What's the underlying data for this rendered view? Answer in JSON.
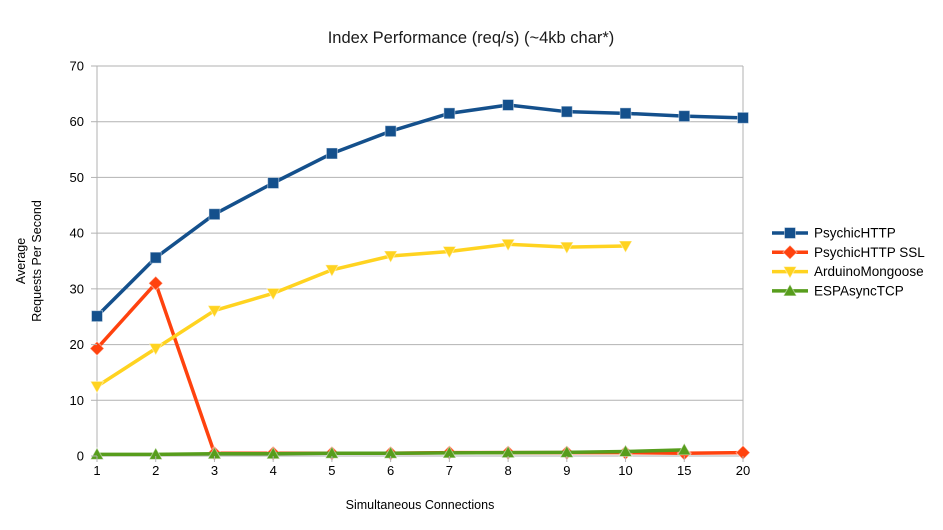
{
  "chart_data": {
    "type": "line",
    "title": "Index Performance (req/s) (~4kb char*)",
    "xlabel": "Simultaneous Connections",
    "ylabel": "Average Requests Per Second",
    "ylabel_lines": [
      "Average",
      "Requests Per Second"
    ],
    "categories": [
      "1",
      "2",
      "3",
      "4",
      "5",
      "6",
      "7",
      "8",
      "9",
      "10",
      "15",
      "20"
    ],
    "ylim": [
      0,
      70
    ],
    "ytick_step": 10,
    "ytick_labels": [
      "0",
      "10",
      "20",
      "30",
      "40",
      "50",
      "60",
      "70"
    ],
    "grid": "horizontal-only",
    "legend_position": "right",
    "colors": {
      "grid": "#b2b2b2",
      "axis": "#b2b2b2",
      "text": "#000000"
    },
    "series": [
      {
        "name": "PsychicHTTP",
        "color": "#14508C",
        "marker": "square",
        "values": [
          25.1,
          35.6,
          43.4,
          49,
          54.3,
          58.3,
          61.5,
          63,
          61.8,
          61.5,
          61,
          60.7
        ]
      },
      {
        "name": "PsychicHTTP SSL",
        "color": "#FF420E",
        "marker": "diamond",
        "values": [
          19.3,
          31,
          0.5,
          0.5,
          0.5,
          0.5,
          0.6,
          0.6,
          0.6,
          0.6,
          0.5,
          0.6
        ]
      },
      {
        "name": "ArduinoMongoose",
        "color": "#FFD320",
        "marker": "triangle-down",
        "values": [
          12.5,
          19.3,
          26.1,
          29.2,
          33.4,
          35.9,
          36.7,
          38,
          37.5,
          37.7,
          null,
          null
        ]
      },
      {
        "name": "ESPAsyncTCP",
        "color": "#579D1C",
        "marker": "triangle-up",
        "values": [
          0.3,
          0.3,
          0.4,
          0.4,
          0.5,
          0.5,
          0.55,
          0.6,
          0.65,
          0.8,
          1.1,
          null
        ]
      }
    ]
  }
}
